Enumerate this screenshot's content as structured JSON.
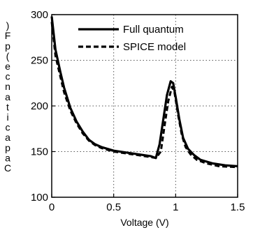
{
  "chart_data": {
    "type": "line",
    "title": "",
    "xlabel": "Voltage (V)",
    "ylabel": "Capacitance (pF)",
    "ylabel_rendered_chars": [
      "C",
      "a",
      "p",
      "a",
      "c",
      "i",
      "t",
      "a",
      "n",
      "c",
      "e",
      "(",
      "p",
      "F",
      ")"
    ],
    "xlim": [
      0,
      1.5
    ],
    "ylim": [
      100,
      300
    ],
    "xticks": [
      "0",
      "0.5",
      "1",
      "1.5"
    ],
    "yticks": [
      "100",
      "150",
      "200",
      "250",
      "300"
    ],
    "grid": "dotted",
    "legend_position": "top-right",
    "series": [
      {
        "name": "Full quantum",
        "style": "solid",
        "color": "#000000",
        "x": [
          0,
          0.03,
          0.07,
          0.1,
          0.15,
          0.2,
          0.25,
          0.3,
          0.35,
          0.4,
          0.5,
          0.6,
          0.7,
          0.8,
          0.84,
          0.87,
          0.9,
          0.93,
          0.96,
          0.98,
          1.0,
          1.03,
          1.06,
          1.1,
          1.15,
          1.2,
          1.3,
          1.4,
          1.5
        ],
        "y": [
          298,
          262,
          237,
          220,
          198,
          183,
          172,
          163,
          158,
          155,
          151,
          149,
          147,
          145,
          143,
          158,
          185,
          212,
          227,
          225,
          210,
          185,
          165,
          153,
          146,
          141,
          137,
          135,
          134
        ]
      },
      {
        "name": "SPICE model",
        "style": "dashed",
        "color": "#000000",
        "x": [
          0,
          0.03,
          0.07,
          0.1,
          0.15,
          0.2,
          0.25,
          0.3,
          0.35,
          0.4,
          0.5,
          0.6,
          0.7,
          0.8,
          0.84,
          0.88,
          0.91,
          0.94,
          0.97,
          0.99,
          1.02,
          1.05,
          1.08,
          1.12,
          1.17,
          1.25,
          1.35,
          1.5
        ],
        "y": [
          292,
          255,
          232,
          215,
          195,
          181,
          170,
          162,
          157,
          154,
          150,
          148,
          146,
          144,
          143,
          150,
          178,
          205,
          221,
          215,
          190,
          168,
          155,
          147,
          141,
          137,
          134,
          133
        ]
      }
    ]
  }
}
